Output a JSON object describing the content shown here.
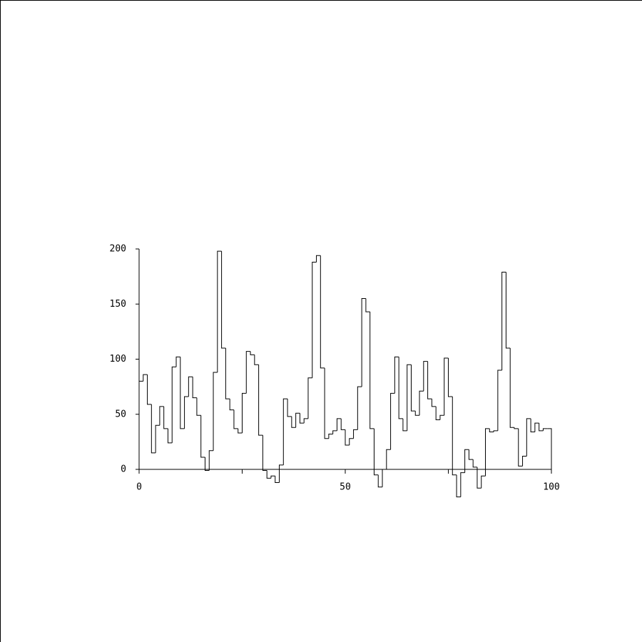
{
  "chart_data": {
    "type": "histogram",
    "style": "step",
    "color": "#000000",
    "bins": [
      0,
      1,
      2,
      3,
      4,
      5,
      6,
      7,
      8,
      9,
      10,
      11,
      12,
      13,
      14,
      15,
      16,
      17,
      18,
      19,
      20,
      21,
      22,
      23,
      24,
      25,
      26,
      27,
      28,
      29,
      30,
      31,
      32,
      33,
      34,
      35,
      36,
      37,
      38,
      39,
      40,
      41,
      42,
      43,
      44,
      45,
      46,
      47,
      48,
      49,
      50,
      51,
      52,
      53,
      54,
      55,
      56,
      57,
      58,
      59,
      60,
      61,
      62,
      63,
      64,
      65,
      66,
      67,
      68,
      69,
      70,
      71,
      72,
      73,
      74,
      75,
      76,
      77,
      78,
      79,
      80,
      81,
      82,
      83,
      84,
      85,
      86,
      87,
      88,
      89,
      90,
      91,
      92,
      93,
      94,
      95,
      96,
      97,
      98,
      99,
      100
    ],
    "values": [
      80,
      86,
      59,
      15,
      40,
      57,
      37,
      24,
      93,
      102,
      37,
      66,
      84,
      65,
      49,
      11,
      -1,
      17,
      88,
      198,
      110,
      64,
      54,
      37,
      33,
      69,
      107,
      104,
      95,
      31,
      -1,
      -8,
      -6,
      -12,
      4,
      64,
      48,
      38,
      51,
      42,
      46,
      83,
      188,
      194,
      92,
      28,
      32,
      35,
      46,
      36,
      22,
      28,
      36,
      75,
      155,
      143,
      37,
      -5,
      -16,
      0,
      18,
      69,
      102,
      46,
      35,
      95,
      53,
      49,
      71,
      98,
      64,
      57,
      45,
      49,
      101,
      66,
      -5,
      -25,
      -3,
      18,
      9,
      2,
      -17,
      -6,
      37,
      34,
      35,
      90,
      179,
      110,
      38,
      37,
      3,
      12,
      46,
      34,
      42,
      35,
      37,
      37
    ],
    "xlim": [
      0,
      100
    ],
    "xticks": [
      0,
      50,
      100
    ],
    "xminorticks": [
      25,
      75
    ],
    "ylim": [
      0,
      200
    ],
    "yticks": [
      0,
      50,
      100,
      150,
      200
    ]
  }
}
